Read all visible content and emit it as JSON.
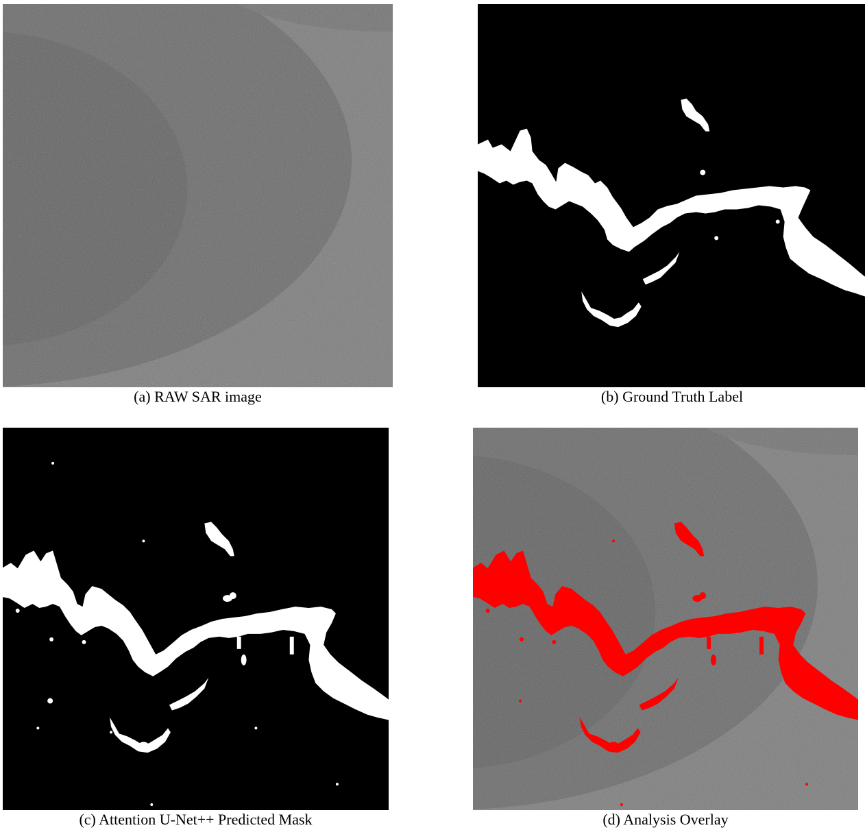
{
  "figure": {
    "panels": [
      {
        "id": "a",
        "caption": "(a) RAW SAR image",
        "kind": "sar-raw"
      },
      {
        "id": "b",
        "caption": "(b) Ground Truth Label",
        "kind": "binary-mask"
      },
      {
        "id": "c",
        "caption": "(c) Attention U-Net++ Predicted Mask",
        "kind": "binary-mask"
      },
      {
        "id": "d",
        "caption": "(d) Analysis Overlay",
        "kind": "sar-overlay"
      }
    ],
    "colors": {
      "sar_background": "#7c7c7c",
      "sar_dark_region": "#6a6a6a",
      "sar_inner_region": "#636363",
      "mask_background": "#000000",
      "mask_foreground": "#ffffff",
      "overlay_highlight": "#ff0000"
    }
  }
}
